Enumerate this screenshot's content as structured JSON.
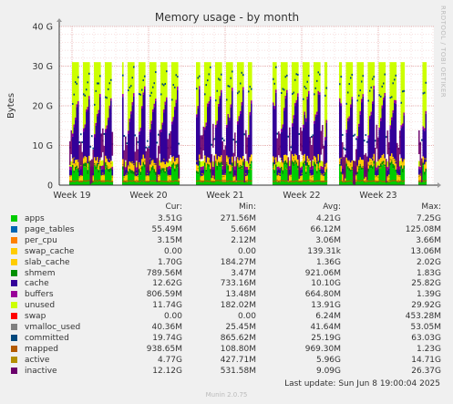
{
  "chart_data": {
    "type": "area",
    "title": "Memory usage - by month",
    "ylabel": "Bytes",
    "ylim": [
      0,
      40
    ],
    "y_unit": "G",
    "yticks": [
      "0",
      "10 G",
      "20 G",
      "30 G",
      "40 G"
    ],
    "xticks": [
      "Week 19",
      "Week 20",
      "Week 21",
      "Week 22",
      "Week 23"
    ],
    "grid": true,
    "legend_columns": [
      "Cur:",
      "Min:",
      "Avg:",
      "Max:"
    ],
    "series": [
      {
        "name": "apps",
        "color": "#00cc00",
        "cur": "3.51G",
        "min": "271.56M",
        "avg": "4.21G",
        "max": "7.25G"
      },
      {
        "name": "page_tables",
        "color": "#0066b3",
        "cur": "55.49M",
        "min": "5.66M",
        "avg": "66.12M",
        "max": "125.08M"
      },
      {
        "name": "per_cpu",
        "color": "#ff8000",
        "cur": "3.15M",
        "min": "2.12M",
        "avg": "3.06M",
        "max": "3.66M"
      },
      {
        "name": "swap_cache",
        "color": "#ffcc00",
        "cur": "0.00",
        "min": "0.00",
        "avg": "139.31k",
        "max": "13.06M"
      },
      {
        "name": "slab_cache",
        "color": "#ffcc00",
        "cur": "1.70G",
        "min": "184.27M",
        "avg": "1.36G",
        "max": "2.02G"
      },
      {
        "name": "shmem",
        "color": "#008f00",
        "cur": "789.56M",
        "min": "3.47M",
        "avg": "921.06M",
        "max": "1.83G"
      },
      {
        "name": "cache",
        "color": "#330099",
        "cur": "12.62G",
        "min": "733.16M",
        "avg": "10.10G",
        "max": "25.82G"
      },
      {
        "name": "buffers",
        "color": "#990099",
        "cur": "806.59M",
        "min": "13.48M",
        "avg": "664.80M",
        "max": "1.39G"
      },
      {
        "name": "unused",
        "color": "#ccff00",
        "cur": "11.74G",
        "min": "182.02M",
        "avg": "13.91G",
        "max": "29.92G"
      },
      {
        "name": "swap",
        "color": "#ff0000",
        "cur": "0.00",
        "min": "0.00",
        "avg": "6.24M",
        "max": "453.28M"
      },
      {
        "name": "vmalloc_used",
        "color": "#808080",
        "cur": "40.36M",
        "min": "25.45M",
        "avg": "41.64M",
        "max": "53.05M"
      },
      {
        "name": "committed",
        "color": "#00487d",
        "cur": "19.74G",
        "min": "865.62M",
        "avg": "25.19G",
        "max": "63.03G"
      },
      {
        "name": "mapped",
        "color": "#b35a00",
        "cur": "938.65M",
        "min": "108.80M",
        "avg": "969.30M",
        "max": "1.23G"
      },
      {
        "name": "active",
        "color": "#b38f00",
        "cur": "4.77G",
        "min": "427.71M",
        "avg": "5.96G",
        "max": "14.71G"
      },
      {
        "name": "inactive",
        "color": "#6b006b",
        "cur": "12.12G",
        "min": "531.58M",
        "avg": "9.09G",
        "max": "26.37G"
      }
    ]
  },
  "footer": {
    "last_update": "Last update: Sun Jun  8 19:00:04 2025",
    "munin": "Munin 2.0.75",
    "rrdtool": "RRDTOOL / TOBI OETIKER"
  }
}
